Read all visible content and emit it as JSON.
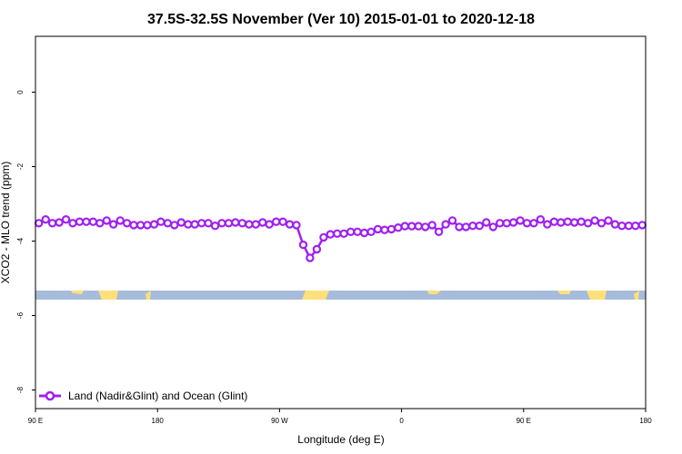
{
  "chart_data": {
    "type": "line",
    "title": "37.5S-32.5S November (Ver 10)   2015-01-01 to 2020-12-18",
    "xlabel": "Longitude (deg E)",
    "ylabel": "XCO2 - MLO trend (ppm)",
    "x_ticks": [
      {
        "value": 90,
        "label": "90 E"
      },
      {
        "value": 180,
        "label": "180"
      },
      {
        "value": 270,
        "label": "90 W"
      },
      {
        "value": 360,
        "label": "0"
      },
      {
        "value": 450,
        "label": "90 E"
      },
      {
        "value": 540,
        "label": "180"
      }
    ],
    "y_ticks": [
      {
        "value": 0,
        "label": "0"
      },
      {
        "value": -2,
        "label": "-2"
      },
      {
        "value": -4,
        "label": "-4"
      },
      {
        "value": -6,
        "label": "-6"
      },
      {
        "value": -8,
        "label": "-8"
      }
    ],
    "xlim": [
      90,
      540
    ],
    "ylim": [
      -8.5,
      1.5
    ],
    "legend_position": "bottom-left",
    "series": [
      {
        "name": "Land (Nadir&Glint) and Ocean (Glint)",
        "color": "#a020f0",
        "x": [
          92.5,
          97.5,
          102.5,
          107.5,
          112.5,
          117.5,
          122.5,
          127.5,
          132.5,
          137.5,
          142.5,
          147.5,
          152.5,
          157.5,
          162.5,
          167.5,
          172.5,
          177.5,
          182.5,
          187.5,
          192.5,
          197.5,
          202.5,
          207.5,
          212.5,
          217.5,
          222.5,
          227.5,
          232.5,
          237.5,
          242.5,
          247.5,
          252.5,
          257.5,
          262.5,
          267.5,
          272.5,
          277.5,
          282.5,
          287.5,
          292.5,
          297.5,
          302.5,
          307.5,
          312.5,
          317.5,
          322.5,
          327.5,
          332.5,
          337.5,
          342.5,
          347.5,
          352.5,
          357.5,
          362.5,
          367.5,
          372.5,
          377.5,
          382.5,
          387.5,
          392.5,
          397.5,
          402.5,
          407.5,
          412.5,
          417.5,
          422.5,
          427.5,
          432.5,
          437.5,
          442.5,
          447.5,
          452.5,
          457.5,
          462.5,
          467.5,
          472.5,
          477.5,
          482.5,
          487.5,
          492.5,
          497.5,
          502.5,
          507.5,
          512.5,
          517.5,
          522.5,
          527.5,
          532.5,
          537.5
        ],
        "values": [
          -3.52,
          -3.42,
          -3.52,
          -3.5,
          -3.42,
          -3.52,
          -3.48,
          -3.48,
          -3.48,
          -3.52,
          -3.45,
          -3.55,
          -3.45,
          -3.52,
          -3.57,
          -3.57,
          -3.57,
          -3.55,
          -3.48,
          -3.52,
          -3.57,
          -3.5,
          -3.55,
          -3.55,
          -3.52,
          -3.52,
          -3.59,
          -3.52,
          -3.52,
          -3.5,
          -3.52,
          -3.55,
          -3.55,
          -3.5,
          -3.55,
          -3.48,
          -3.48,
          -3.55,
          -3.57,
          -4.1,
          -4.45,
          -4.22,
          -3.9,
          -3.82,
          -3.8,
          -3.8,
          -3.75,
          -3.75,
          -3.78,
          -3.75,
          -3.68,
          -3.7,
          -3.68,
          -3.64,
          -3.6,
          -3.6,
          -3.6,
          -3.62,
          -3.57,
          -3.75,
          -3.55,
          -3.45,
          -3.62,
          -3.62,
          -3.59,
          -3.59,
          -3.5,
          -3.62,
          -3.52,
          -3.52,
          -3.5,
          -3.45,
          -3.52,
          -3.52,
          -3.42,
          -3.55,
          -3.48,
          -3.5,
          -3.48,
          -3.5,
          -3.48,
          -3.52,
          -3.45,
          -3.52,
          -3.45,
          -3.55,
          -3.59,
          -3.59,
          -3.59,
          -3.57
        ]
      }
    ]
  }
}
